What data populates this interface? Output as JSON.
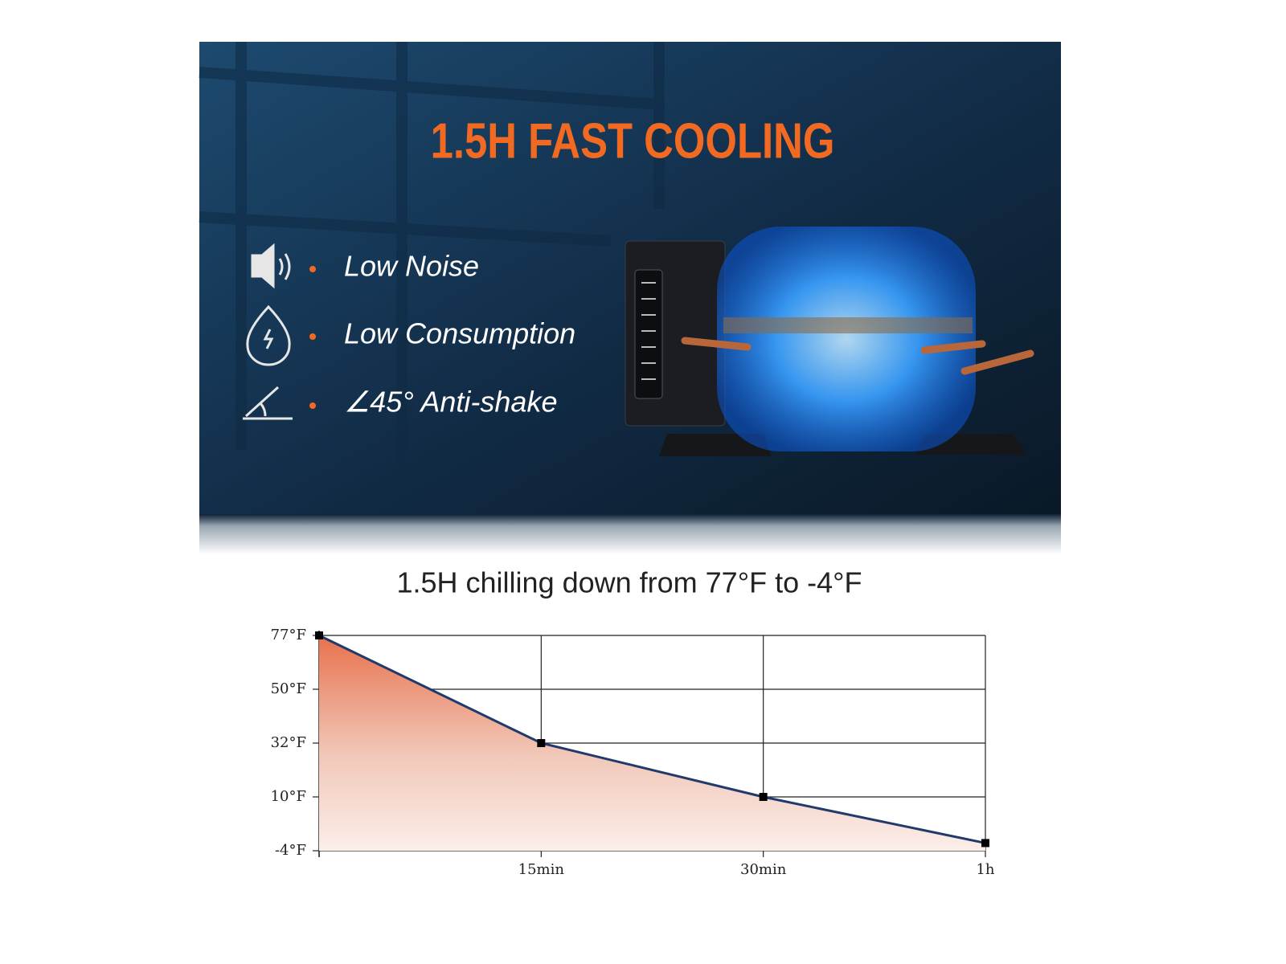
{
  "banner": {
    "title": "1.5H FAST COOLING",
    "features": [
      "Low Noise",
      "Low Consumption",
      "∠45° Anti-shake"
    ]
  },
  "chart_data": {
    "type": "line",
    "title": "1.5H chilling down from 77°F to -4°F",
    "categories": [
      null,
      "15min",
      "30min",
      "1h"
    ],
    "values": [
      77,
      32,
      10,
      -2
    ],
    "color": "#1f3a6b",
    "ylim": [
      -4,
      77
    ],
    "yticks": [
      {
        "value": 77,
        "label": "77°F"
      },
      {
        "value": 50,
        "label": "50°F"
      },
      {
        "value": 32,
        "label": "32°F"
      },
      {
        "value": 10,
        "label": "10°F"
      },
      {
        "value": -4,
        "label": "-4°F"
      }
    ],
    "grid": true
  }
}
